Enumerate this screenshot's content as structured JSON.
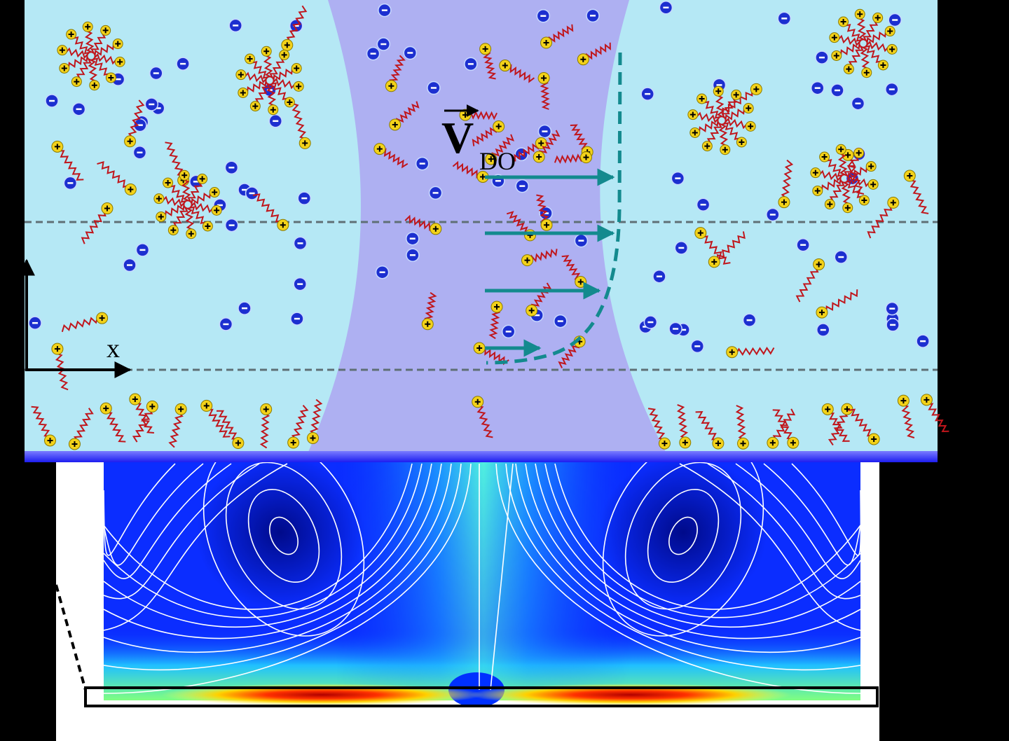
{
  "labels": {
    "velocity": "V",
    "velocity_subscript": "DO",
    "x_axis": "x"
  }
}
